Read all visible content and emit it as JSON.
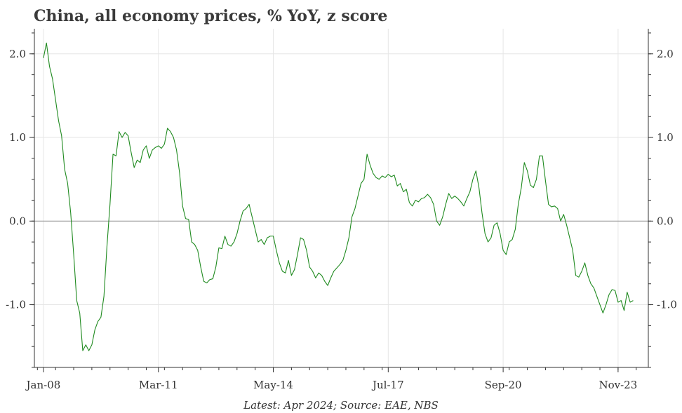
{
  "chart_data": {
    "type": "line",
    "title": "China, all economy prices, % YoY, z score",
    "source": "Latest: Apr 2024; Source: EAE, NBS",
    "xlabel": "",
    "ylabel": "",
    "x_start": "2008-01",
    "x_end": "2024-04",
    "xlim_months": [
      -3,
      200
    ],
    "ylim": [
      -1.75,
      2.3
    ],
    "grid": true,
    "reference_line": 0.0,
    "x_tick_labels": [
      "Jan-08",
      "Mar-11",
      "May-14",
      "Jul-17",
      "Sep-20",
      "Nov-23"
    ],
    "x_tick_months": [
      0,
      38,
      76,
      114,
      152,
      190
    ],
    "y_ticks": [
      2.0,
      1.0,
      0.0,
      -1.0
    ],
    "y_tick_labels": [
      "2.0",
      "1.0",
      "0.0",
      "-1.0"
    ],
    "series": [
      {
        "name": "All economy prices z score",
        "color": "#1f8a1f",
        "values": [
          1.95,
          2.13,
          1.85,
          1.7,
          1.45,
          1.2,
          1.02,
          0.62,
          0.45,
          0.1,
          -0.4,
          -0.95,
          -1.1,
          -1.55,
          -1.48,
          -1.55,
          -1.48,
          -1.3,
          -1.2,
          -1.15,
          -0.9,
          -0.3,
          0.2,
          0.8,
          0.78,
          1.07,
          1.0,
          1.06,
          1.02,
          0.82,
          0.64,
          0.73,
          0.7,
          0.85,
          0.9,
          0.75,
          0.85,
          0.88,
          0.9,
          0.87,
          0.92,
          1.11,
          1.07,
          1.0,
          0.85,
          0.58,
          0.18,
          0.03,
          0.02,
          -0.25,
          -0.28,
          -0.35,
          -0.55,
          -0.72,
          -0.74,
          -0.7,
          -0.69,
          -0.55,
          -0.32,
          -0.33,
          -0.18,
          -0.28,
          -0.3,
          -0.25,
          -0.15,
          0.0,
          0.12,
          0.15,
          0.2,
          0.05,
          -0.1,
          -0.25,
          -0.22,
          -0.28,
          -0.2,
          -0.18,
          -0.18,
          -0.35,
          -0.5,
          -0.6,
          -0.62,
          -0.47,
          -0.65,
          -0.58,
          -0.4,
          -0.2,
          -0.22,
          -0.35,
          -0.55,
          -0.6,
          -0.68,
          -0.62,
          -0.65,
          -0.72,
          -0.77,
          -0.68,
          -0.6,
          -0.56,
          -0.52,
          -0.47,
          -0.35,
          -0.2,
          0.05,
          0.15,
          0.3,
          0.45,
          0.5,
          0.8,
          0.67,
          0.57,
          0.52,
          0.5,
          0.54,
          0.52,
          0.56,
          0.53,
          0.55,
          0.42,
          0.45,
          0.35,
          0.38,
          0.22,
          0.18,
          0.25,
          0.23,
          0.27,
          0.28,
          0.32,
          0.28,
          0.2,
          0.0,
          -0.05,
          0.05,
          0.2,
          0.33,
          0.27,
          0.3,
          0.27,
          0.23,
          0.18,
          0.27,
          0.35,
          0.5,
          0.6,
          0.4,
          0.1,
          -0.15,
          -0.25,
          -0.2,
          -0.05,
          -0.02,
          -0.15,
          -0.35,
          -0.4,
          -0.25,
          -0.22,
          -0.1,
          0.2,
          0.4,
          0.7,
          0.6,
          0.43,
          0.4,
          0.5,
          0.78,
          0.78,
          0.48,
          0.2,
          0.17,
          0.18,
          0.15,
          0.0,
          0.08,
          -0.05,
          -0.2,
          -0.35,
          -0.65,
          -0.67,
          -0.6,
          -0.5,
          -0.65,
          -0.75,
          -0.8,
          -0.9,
          -1.0,
          -1.1,
          -1.0,
          -0.88,
          -0.82,
          -0.83,
          -0.97,
          -0.95,
          -1.07,
          -0.85,
          -0.97,
          -0.95
        ]
      }
    ]
  }
}
